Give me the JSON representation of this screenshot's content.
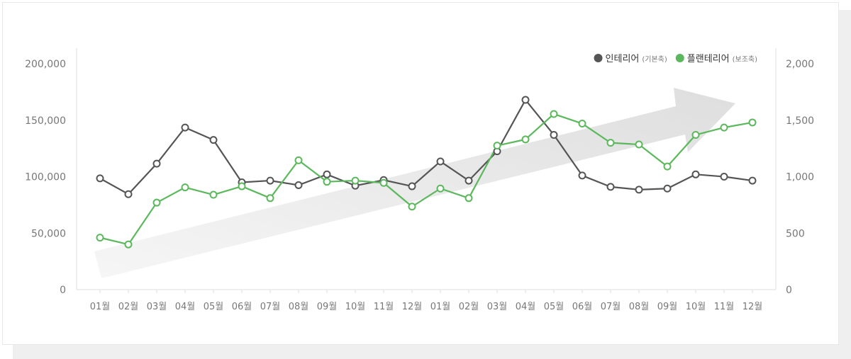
{
  "chart_data": {
    "type": "line",
    "categories": [
      "01월",
      "02월",
      "03월",
      "04월",
      "05월",
      "06월",
      "07월",
      "08월",
      "09월",
      "10월",
      "11월",
      "12월",
      "01월",
      "02월",
      "03월",
      "04월",
      "05월",
      "06월",
      "07월",
      "08월",
      "09월",
      "10월",
      "11월",
      "12월"
    ],
    "left_axis": {
      "ylim": [
        0,
        200000
      ],
      "ticks": [
        "0",
        "50,000",
        "100,000",
        "150,000",
        "200,000"
      ],
      "tick_values": [
        0,
        50000,
        100000,
        150000,
        200000
      ]
    },
    "right_axis": {
      "ylim": [
        0,
        2000
      ],
      "ticks": [
        "0",
        "500",
        "1,000",
        "1,500",
        "2,000"
      ],
      "tick_values": [
        0,
        500,
        1000,
        1500,
        2000
      ]
    },
    "legend_position": "top-right",
    "grid": false,
    "series": [
      {
        "name": "인테리어",
        "axis_label": "(기본축)",
        "axis": "left",
        "color": "#555555",
        "values": [
          98500,
          84500,
          111500,
          143500,
          132500,
          95000,
          96500,
          92500,
          102000,
          92000,
          97000,
          91500,
          113500,
          96500,
          122500,
          168000,
          137000,
          101000,
          91000,
          88500,
          89500,
          102000,
          100000,
          96500
        ]
      },
      {
        "name": "플랜테리어",
        "axis_label": "(보조축)",
        "axis": "right",
        "color": "#5cb85c",
        "values": [
          460,
          400,
          770,
          905,
          840,
          915,
          810,
          1145,
          955,
          965,
          945,
          735,
          895,
          810,
          1275,
          1330,
          1555,
          1470,
          1300,
          1285,
          1090,
          1370,
          1435,
          1480
        ]
      }
    ],
    "trend_arrow": true
  }
}
